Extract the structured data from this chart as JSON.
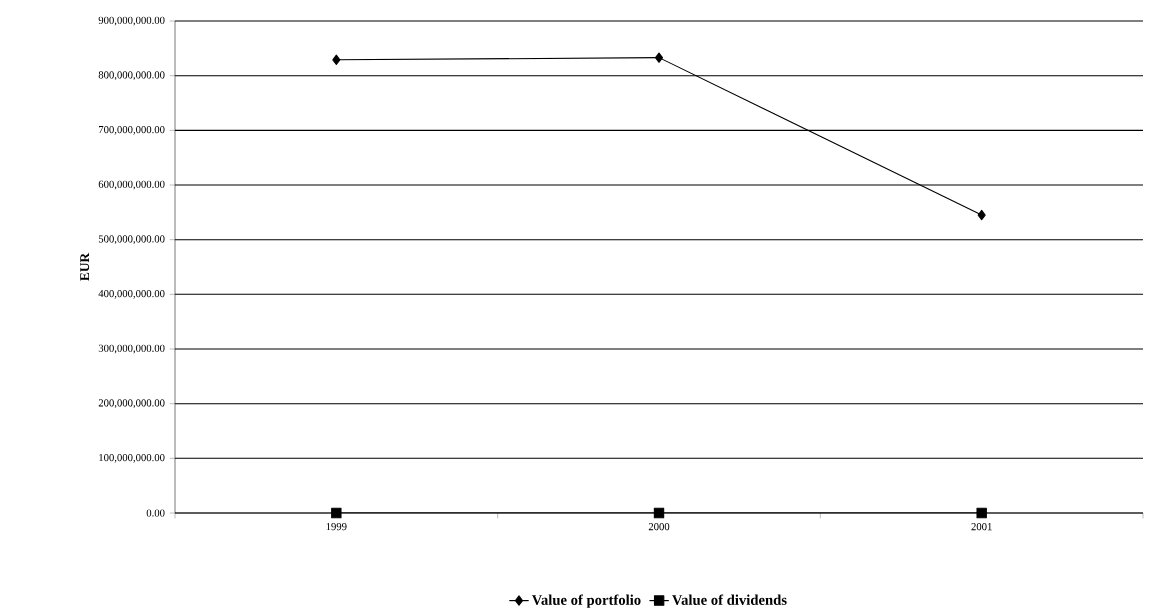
{
  "chart_data": {
    "type": "line",
    "ylabel": "EUR",
    "categories": [
      "1999",
      "2000",
      "2001"
    ],
    "series": [
      {
        "name": "Value of portfolio",
        "color": "#000000",
        "marker": "diamond",
        "values": [
          829000000,
          833000000,
          545000000
        ]
      },
      {
        "name": "Value of dividends",
        "color": "#000000",
        "marker": "square",
        "values": [
          0,
          0,
          0
        ]
      }
    ],
    "ylim": [
      0,
      900000000
    ],
    "yticks": [
      {
        "value": 0,
        "label": "0.00"
      },
      {
        "value": 100000000,
        "label": "100,000,000.00"
      },
      {
        "value": 200000000,
        "label": "200,000,000.00"
      },
      {
        "value": 300000000,
        "label": "300,000,000.00"
      },
      {
        "value": 400000000,
        "label": "400,000,000.00"
      },
      {
        "value": 500000000,
        "label": "500,000,000.00"
      },
      {
        "value": 600000000,
        "label": "600,000,000.00"
      },
      {
        "value": 700000000,
        "label": "700,000,000.00"
      },
      {
        "value": 800000000,
        "label": "800,000,000.00"
      },
      {
        "value": 900000000,
        "label": "900,000,000.00"
      }
    ],
    "grid": "y",
    "legend": "bottom",
    "line_style": "solid"
  }
}
